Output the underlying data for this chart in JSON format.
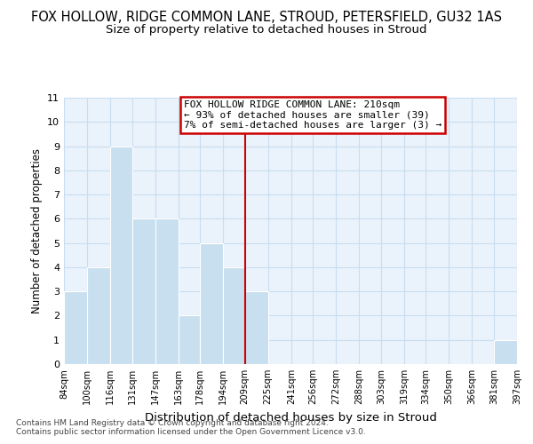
{
  "title": "FOX HOLLOW, RIDGE COMMON LANE, STROUD, PETERSFIELD, GU32 1AS",
  "subtitle": "Size of property relative to detached houses in Stroud",
  "xlabel": "Distribution of detached houses by size in Stroud",
  "ylabel": "Number of detached properties",
  "footnote1": "Contains HM Land Registry data © Crown copyright and database right 2024.",
  "footnote2": "Contains public sector information licensed under the Open Government Licence v3.0.",
  "bar_edges": [
    84,
    100,
    116,
    131,
    147,
    163,
    178,
    194,
    209,
    225,
    241,
    256,
    272,
    288,
    303,
    319,
    334,
    350,
    366,
    381,
    397
  ],
  "bar_heights": [
    3,
    4,
    9,
    6,
    6,
    2,
    5,
    4,
    3,
    0,
    0,
    0,
    0,
    0,
    0,
    0,
    0,
    0,
    0,
    1
  ],
  "tick_labels": [
    "84sqm",
    "100sqm",
    "116sqm",
    "131sqm",
    "147sqm",
    "163sqm",
    "178sqm",
    "194sqm",
    "209sqm",
    "225sqm",
    "241sqm",
    "256sqm",
    "272sqm",
    "288sqm",
    "303sqm",
    "319sqm",
    "334sqm",
    "350sqm",
    "366sqm",
    "381sqm",
    "397sqm"
  ],
  "bar_color": "#c8dff0",
  "grid_color": "#c8ddf0",
  "vline_x": 209,
  "vline_color": "#cc0000",
  "vline_lw": 1.5,
  "annotation_title": "FOX HOLLOW RIDGE COMMON LANE: 210sqm",
  "annotation_line1": "← 93% of detached houses are smaller (39)",
  "annotation_line2": "7% of semi-detached houses are larger (3) →",
  "ylim": [
    0,
    11
  ],
  "yticks": [
    0,
    1,
    2,
    3,
    4,
    5,
    6,
    7,
    8,
    9,
    10,
    11
  ],
  "bg_color": "#eaf3fb",
  "title_fontsize": 10.5,
  "subtitle_fontsize": 9.5,
  "xlabel_fontsize": 9.5,
  "ylabel_fontsize": 8.5,
  "footnote_fontsize": 6.5
}
